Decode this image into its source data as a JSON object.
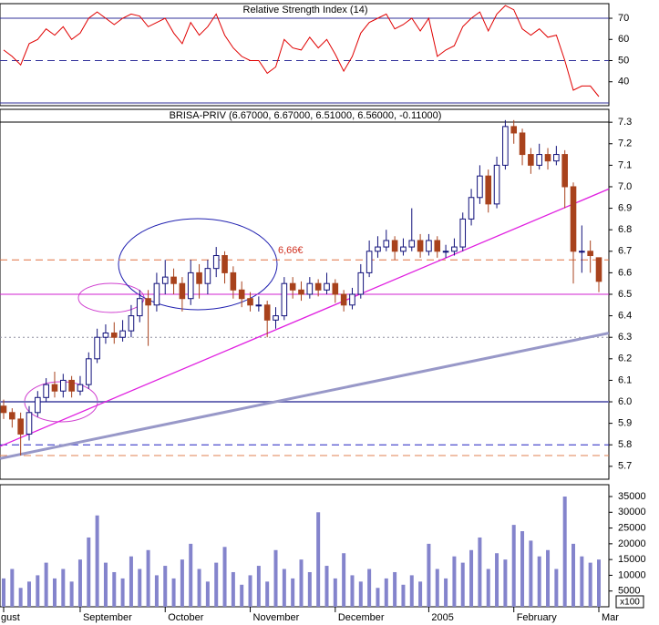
{
  "chart_data": [
    {
      "type": "line",
      "title": "Relative Strength Index (14)",
      "color": "#e00000",
      "values": [
        55,
        52,
        48,
        58,
        60,
        65,
        62,
        66,
        60,
        63,
        70,
        73,
        70,
        67,
        70,
        72,
        71,
        66,
        68,
        70,
        63,
        58,
        68,
        62,
        66,
        72,
        62,
        56,
        52,
        50,
        50,
        44,
        47,
        60,
        56,
        55,
        61,
        56,
        60,
        53,
        45,
        52,
        63,
        68,
        70,
        72,
        65,
        67,
        70,
        64,
        70,
        52,
        55,
        57,
        66,
        70,
        73,
        64,
        72,
        76,
        74,
        65,
        62,
        65,
        61,
        62,
        50,
        36,
        38,
        38,
        33
      ],
      "ylim": [
        28.7,
        76.9
      ],
      "yticks": [
        40,
        50,
        60,
        70
      ],
      "hlines": [
        {
          "value": 70,
          "color": "#30309a",
          "style": "solid"
        },
        {
          "value": 50,
          "color": "#30309a",
          "style": "dashed"
        },
        {
          "value": 30,
          "color": "#30309a",
          "style": "solid"
        }
      ]
    },
    {
      "type": "candlestick",
      "title": "BRISA-PRIV (6.67000, 6.67000, 6.51000, 6.56000, -0.11000)",
      "up_color": "#ffffff",
      "up_edge": "#10107a",
      "down_color": "#a8421c",
      "open": [
        5.98,
        5.95,
        5.92,
        5.85,
        5.95,
        6.02,
        6.08,
        6.05,
        6.1,
        6.05,
        6.08,
        6.2,
        6.3,
        6.32,
        6.3,
        6.33,
        6.4,
        6.48,
        6.45,
        6.55,
        6.58,
        6.55,
        6.48,
        6.6,
        6.55,
        6.62,
        6.68,
        6.6,
        6.52,
        6.48,
        6.45,
        6.45,
        6.38,
        6.4,
        6.55,
        6.52,
        6.5,
        6.55,
        6.52,
        6.55,
        6.5,
        6.45,
        6.5,
        6.6,
        6.7,
        6.72,
        6.75,
        6.7,
        6.72,
        6.75,
        6.7,
        6.75,
        6.7,
        6.7,
        6.72,
        6.85,
        6.95,
        7.05,
        6.92,
        7.1,
        7.28,
        7.25,
        7.15,
        7.1,
        7.15,
        7.12,
        7.15,
        7.0,
        6.7,
        6.7,
        6.67
      ],
      "high": [
        6.01,
        5.97,
        5.95,
        5.98,
        6.05,
        6.11,
        6.14,
        6.13,
        6.12,
        6.12,
        6.23,
        6.34,
        6.36,
        6.37,
        6.38,
        6.45,
        6.52,
        6.52,
        6.6,
        6.66,
        6.62,
        6.58,
        6.66,
        6.64,
        6.66,
        6.72,
        6.7,
        6.63,
        6.56,
        6.51,
        6.49,
        6.47,
        6.44,
        6.58,
        6.58,
        6.56,
        6.58,
        6.57,
        6.6,
        6.57,
        6.52,
        6.53,
        6.64,
        6.75,
        6.77,
        6.8,
        6.77,
        6.76,
        6.9,
        6.78,
        6.78,
        6.77,
        6.73,
        6.76,
        6.88,
        6.99,
        7.1,
        7.08,
        7.14,
        7.31,
        7.31,
        7.27,
        7.18,
        7.2,
        7.18,
        7.19,
        7.17,
        7.02,
        6.82,
        6.75,
        6.67
      ],
      "low": [
        5.92,
        5.88,
        5.75,
        5.82,
        5.93,
        6.0,
        6.02,
        6.02,
        6.02,
        6.03,
        6.06,
        6.18,
        6.27,
        6.27,
        6.28,
        6.3,
        6.37,
        6.26,
        6.42,
        6.5,
        6.5,
        6.42,
        6.45,
        6.48,
        6.5,
        6.58,
        6.55,
        6.48,
        6.44,
        6.42,
        6.42,
        6.3,
        6.34,
        6.38,
        6.48,
        6.47,
        6.48,
        6.49,
        6.5,
        6.46,
        6.42,
        6.43,
        6.48,
        6.58,
        6.67,
        6.7,
        6.66,
        6.68,
        6.7,
        6.67,
        6.68,
        6.67,
        6.67,
        6.68,
        6.7,
        6.82,
        6.92,
        6.88,
        6.9,
        7.08,
        7.2,
        7.1,
        7.06,
        7.08,
        7.08,
        7.1,
        6.9,
        6.55,
        6.6,
        6.6,
        6.51
      ],
      "close": [
        5.95,
        5.92,
        5.85,
        5.95,
        6.02,
        6.08,
        6.05,
        6.1,
        6.05,
        6.08,
        6.2,
        6.3,
        6.32,
        6.3,
        6.33,
        6.4,
        6.48,
        6.45,
        6.55,
        6.58,
        6.55,
        6.48,
        6.6,
        6.55,
        6.62,
        6.68,
        6.6,
        6.52,
        6.48,
        6.45,
        6.45,
        6.38,
        6.4,
        6.55,
        6.52,
        6.5,
        6.55,
        6.52,
        6.55,
        6.5,
        6.45,
        6.5,
        6.6,
        6.7,
        6.72,
        6.75,
        6.7,
        6.72,
        6.75,
        6.7,
        6.75,
        6.7,
        6.7,
        6.72,
        6.85,
        6.95,
        7.05,
        6.92,
        7.1,
        7.28,
        7.25,
        7.15,
        7.1,
        7.15,
        7.12,
        7.15,
        7.0,
        6.7,
        6.7,
        6.68,
        6.56
      ],
      "ylim": [
        5.64,
        7.36
      ],
      "yticks": [
        5.7,
        5.8,
        5.9,
        {
          "value": 6,
          "label": "6.0"
        },
        6.1,
        6.2,
        6.3,
        6.4,
        6.5,
        6.6,
        6.7,
        6.8,
        6.9,
        {
          "value": 7,
          "label": "7.0"
        },
        7.1,
        7.2,
        7.3
      ],
      "hlines": [
        {
          "value": 6.66,
          "color": "#e07040",
          "style": "dashed"
        },
        {
          "value": 6.5,
          "color": "#d020d0",
          "style": "solid"
        },
        {
          "value": 6.3,
          "color": "#9090a0",
          "style": "dotted"
        },
        {
          "value": 6,
          "color": "#7070b8",
          "style": "thick"
        },
        {
          "value": 5.8,
          "color": "#2020c0",
          "style": "dashed"
        },
        {
          "value": 5.75,
          "color": "#e08050",
          "style": "dashed"
        }
      ],
      "trendlines": [
        {
          "color": "#e020e0",
          "x": [
            0,
            70
          ],
          "y": [
            5.8,
            6.97
          ]
        },
        {
          "color": "#9898c8",
          "x": [
            0,
            70
          ],
          "y": [
            5.74,
            6.31
          ]
        }
      ],
      "annotation": "6,66€"
    },
    {
      "type": "bar",
      "color": "#8484cc",
      "unit_label": "x100",
      "categories": [
        "gust",
        null,
        null,
        null,
        null,
        null,
        null,
        null,
        null,
        "September",
        null,
        null,
        null,
        null,
        null,
        null,
        null,
        null,
        null,
        "October",
        null,
        null,
        null,
        null,
        null,
        null,
        null,
        null,
        null,
        "November",
        null,
        null,
        null,
        null,
        null,
        null,
        null,
        null,
        null,
        "December",
        null,
        null,
        null,
        null,
        null,
        null,
        null,
        null,
        null,
        null,
        "2005",
        null,
        null,
        null,
        null,
        null,
        null,
        null,
        null,
        null,
        "February",
        null,
        null,
        null,
        null,
        null,
        null,
        null,
        null,
        null,
        "Mar"
      ],
      "values": [
        9000,
        12000,
        6000,
        8000,
        10000,
        14000,
        9000,
        12000,
        8000,
        15000,
        22000,
        29000,
        14000,
        11000,
        9000,
        16000,
        12000,
        18000,
        10000,
        13000,
        9000,
        15000,
        20000,
        12000,
        8000,
        14000,
        19000,
        11000,
        7000,
        10000,
        13000,
        8000,
        18000,
        12000,
        9000,
        15000,
        11000,
        30000,
        13000,
        9000,
        17000,
        10000,
        8000,
        12000,
        6000,
        9000,
        11000,
        7000,
        10000,
        8000,
        20000,
        12000,
        9000,
        16000,
        14000,
        18000,
        22000,
        12000,
        17000,
        15000,
        26000,
        24000,
        21000,
        16000,
        18000,
        12000,
        35000,
        20000,
        16000,
        14000,
        15000
      ],
      "ylim": [
        0,
        38760
      ],
      "yticks": [
        5000,
        10000,
        15000,
        20000,
        25000,
        30000,
        35000
      ]
    }
  ]
}
